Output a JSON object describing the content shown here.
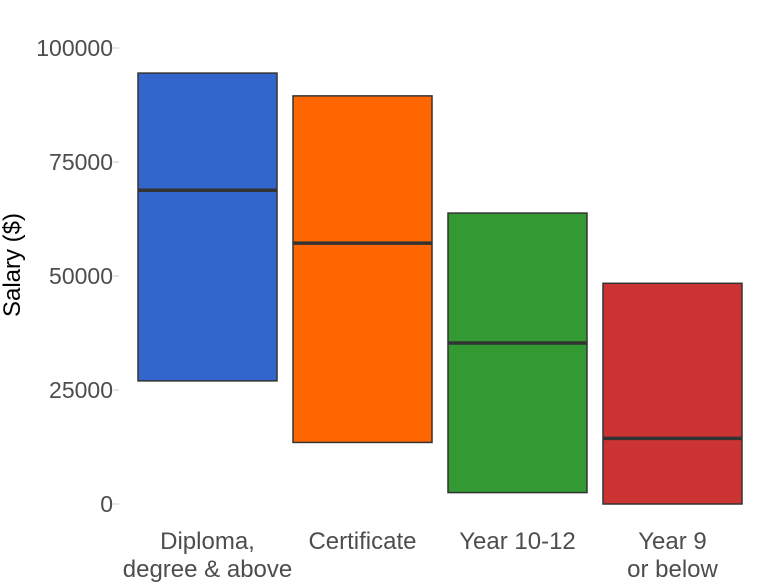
{
  "chart_data": {
    "type": "bar",
    "subtype": "floating-range-with-median",
    "title": "",
    "xlabel": "",
    "ylabel": "Salary ($)",
    "ylim": [
      0,
      100000
    ],
    "yticks": [
      0,
      25000,
      50000,
      75000,
      100000
    ],
    "ytick_labels": [
      "0",
      "25000",
      "50000",
      "75000",
      "100000"
    ],
    "grid": false,
    "legend": "none",
    "categories": [
      {
        "label": [
          "Diploma,",
          "degree & above"
        ],
        "low": 27000,
        "high": 94500,
        "median": 68800,
        "color": "#3366cc"
      },
      {
        "label": [
          "Certificate"
        ],
        "low": 13500,
        "high": 89500,
        "median": 57200,
        "color": "#ff6600"
      },
      {
        "label": [
          "Year 10-12"
        ],
        "low": 2500,
        "high": 63800,
        "median": 35300,
        "color": "#339933"
      },
      {
        "label": [
          "Year 9",
          "or below"
        ],
        "low": 0,
        "high": 48400,
        "median": 14400,
        "color": "#cc3333"
      }
    ],
    "colors": {
      "outline": "#333333",
      "median_line": "#333333",
      "tick_text": "#4d4d4d"
    }
  }
}
